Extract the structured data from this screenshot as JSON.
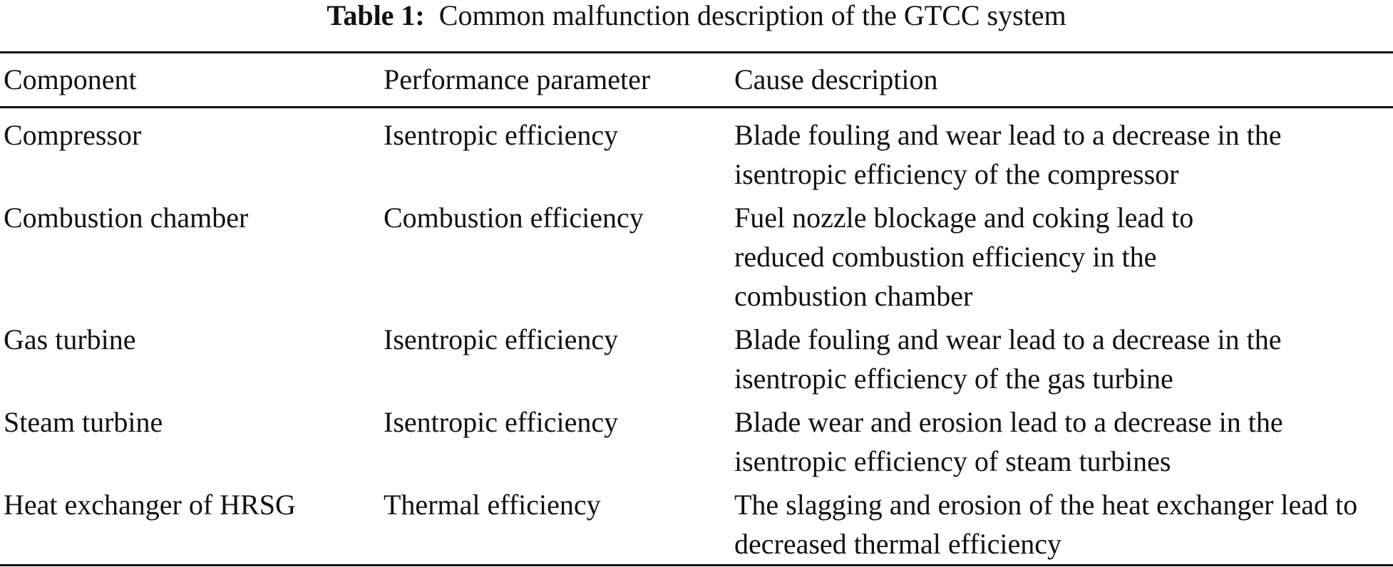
{
  "caption": {
    "label": "Table 1:",
    "text": "Common malfunction description of the GTCC system"
  },
  "table": {
    "headers": [
      "Component",
      "Performance parameter",
      "Cause description"
    ],
    "rows": [
      {
        "component": "Compressor",
        "parameter": "Isentropic efficiency",
        "cause": "Blade fouling and wear lead to a decrease in the isentropic efficiency of the compressor"
      },
      {
        "component": "Combustion chamber",
        "parameter": "Combustion efficiency",
        "cause": "Fuel nozzle blockage and coking lead to reduced combustion efficiency in the combustion chamber"
      },
      {
        "component": "Gas turbine",
        "parameter": "Isentropic efficiency",
        "cause": "Blade fouling and wear lead to a decrease in the isentropic efficiency of the gas turbine"
      },
      {
        "component": "Steam turbine",
        "parameter": "Isentropic efficiency",
        "cause": "Blade wear and erosion lead to a decrease in the isentropic efficiency of steam turbines"
      },
      {
        "component": "Heat exchanger of HRSG",
        "parameter": "Thermal efficiency",
        "cause": "The slagging and erosion of the heat exchanger lead to decreased thermal efficiency"
      }
    ]
  }
}
